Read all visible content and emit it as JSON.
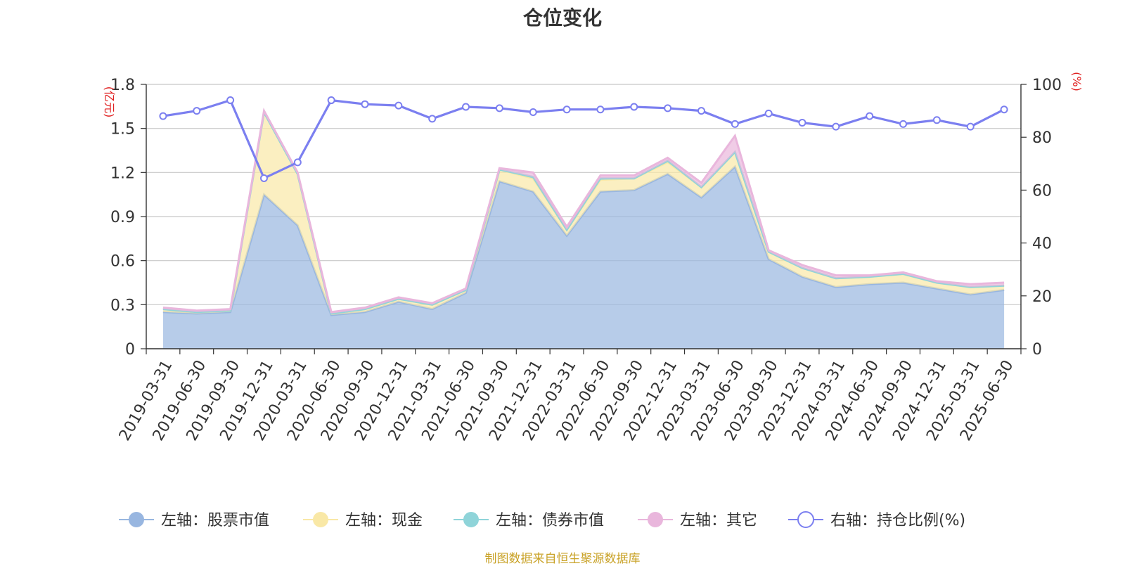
{
  "chart_data": {
    "type": "area",
    "title": "仓位变化",
    "y_left_unit": "(亿元)",
    "y_right_unit": "(%)",
    "ylim_left": [
      0,
      1.8
    ],
    "yticks_left": [
      "0",
      "0.3",
      "0.6",
      "0.9",
      "1.2",
      "1.5",
      "1.8"
    ],
    "ylim_right": [
      0,
      100
    ],
    "yticks_right": [
      "0",
      "20",
      "40",
      "60",
      "80",
      "100"
    ],
    "grid": true,
    "legend_position": "bottom-center",
    "stacked": true,
    "categories": [
      "2019-03-31",
      "2019-06-30",
      "2019-09-30",
      "2019-12-31",
      "2020-03-31",
      "2020-06-30",
      "2020-09-30",
      "2020-12-31",
      "2021-03-31",
      "2021-06-30",
      "2021-09-30",
      "2021-12-31",
      "2022-03-31",
      "2022-06-30",
      "2022-09-30",
      "2022-12-31",
      "2023-03-31",
      "2023-06-30",
      "2023-09-30",
      "2023-12-31",
      "2024-03-31",
      "2024-06-30",
      "2024-09-30",
      "2024-12-31",
      "2025-03-31",
      "2025-06-30"
    ],
    "series": [
      {
        "name": "左轴：股票市值",
        "axis": "left",
        "color": "#98b6e0",
        "values": [
          0.25,
          0.24,
          0.25,
          1.05,
          0.84,
          0.23,
          0.25,
          0.32,
          0.27,
          0.38,
          1.14,
          1.07,
          0.77,
          1.07,
          1.08,
          1.19,
          1.03,
          1.24,
          0.61,
          0.49,
          0.42,
          0.44,
          0.45,
          0.41,
          0.37,
          0.4
        ]
      },
      {
        "name": "左轴：现金",
        "axis": "left",
        "color": "#f9e8a6",
        "values": [
          0.02,
          0.01,
          0.01,
          0.56,
          0.35,
          0.01,
          0.02,
          0.02,
          0.03,
          0.02,
          0.08,
          0.09,
          0.04,
          0.08,
          0.08,
          0.08,
          0.07,
          0.1,
          0.05,
          0.06,
          0.06,
          0.05,
          0.06,
          0.04,
          0.05,
          0.03
        ]
      },
      {
        "name": "左轴：债券市值",
        "axis": "left",
        "color": "#8fd4d9",
        "values": [
          0,
          0,
          0,
          0,
          0,
          0,
          0,
          0,
          0,
          0,
          0,
          0.01,
          0,
          0.01,
          0,
          0.01,
          0,
          0,
          0,
          0,
          0,
          0,
          0,
          0,
          0,
          0
        ]
      },
      {
        "name": "左轴：其它",
        "axis": "left",
        "color": "#e9b6dc",
        "values": [
          0.01,
          0.01,
          0.01,
          0.01,
          0.01,
          0.01,
          0.01,
          0.01,
          0.01,
          0.01,
          0.01,
          0.03,
          0.02,
          0.02,
          0.02,
          0.02,
          0.03,
          0.11,
          0.01,
          0.02,
          0.02,
          0.01,
          0.01,
          0.01,
          0.02,
          0.02
        ]
      },
      {
        "name": "右轴：持仓比例(%)",
        "axis": "right",
        "color": "#7b7ff0",
        "values": [
          88,
          90,
          94,
          64.5,
          70.5,
          94,
          92.5,
          92,
          87,
          91.5,
          91,
          89.5,
          90.5,
          90.5,
          91.5,
          91,
          90,
          85,
          89,
          85.5,
          84,
          88,
          85,
          86.5,
          84,
          90.5
        ]
      }
    ]
  },
  "source_note": "制图数据来自恒生聚源数据库"
}
